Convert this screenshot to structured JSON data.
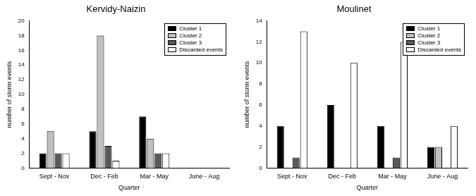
{
  "chart_data": [
    {
      "type": "bar",
      "title": "Kervidy-Naizin",
      "x_label": "Quarter",
      "y_label": "number of storm events",
      "categories": [
        "Sept - Nov",
        "Dec - Feb",
        "Mar - May",
        "June - Aug"
      ],
      "series": [
        {
          "name": "Cluster 1",
          "color": "#000000",
          "values": [
            2,
            5,
            7,
            0
          ]
        },
        {
          "name": "Cluster 2",
          "color": "#c0c0c0",
          "values": [
            5,
            18,
            4,
            0
          ]
        },
        {
          "name": "Cluster 3",
          "color": "#595959",
          "values": [
            2,
            3,
            2,
            0
          ]
        },
        {
          "name": "Discarded events",
          "color": "#ffffff",
          "values": [
            2,
            1,
            2,
            0
          ]
        }
      ],
      "ylim": [
        0,
        20
      ],
      "yticks": [
        0,
        2,
        4,
        6,
        8,
        10,
        12,
        14,
        16,
        18,
        20
      ],
      "grid": false,
      "legend": "upper right"
    },
    {
      "type": "bar",
      "title": "Moulinet",
      "x_label": "Quarter",
      "y_label": "number of storm events",
      "categories": [
        "Sept - Nov",
        "Dec - Feb",
        "Mar - May",
        "June - Aug"
      ],
      "series": [
        {
          "name": "Cluster 1",
          "color": "#000000",
          "values": [
            4,
            6,
            4,
            2
          ]
        },
        {
          "name": "Cluster 2",
          "color": "#c0c0c0",
          "values": [
            0,
            0,
            0,
            2
          ]
        },
        {
          "name": "Cluster 3",
          "color": "#595959",
          "values": [
            1,
            0,
            1,
            0
          ]
        },
        {
          "name": "Discarded events",
          "color": "#ffffff",
          "values": [
            13,
            10,
            12,
            4
          ]
        }
      ],
      "ylim": [
        0,
        14
      ],
      "yticks": [
        0,
        2,
        4,
        6,
        8,
        10,
        12,
        14
      ],
      "grid": false,
      "legend": "upper right"
    }
  ]
}
